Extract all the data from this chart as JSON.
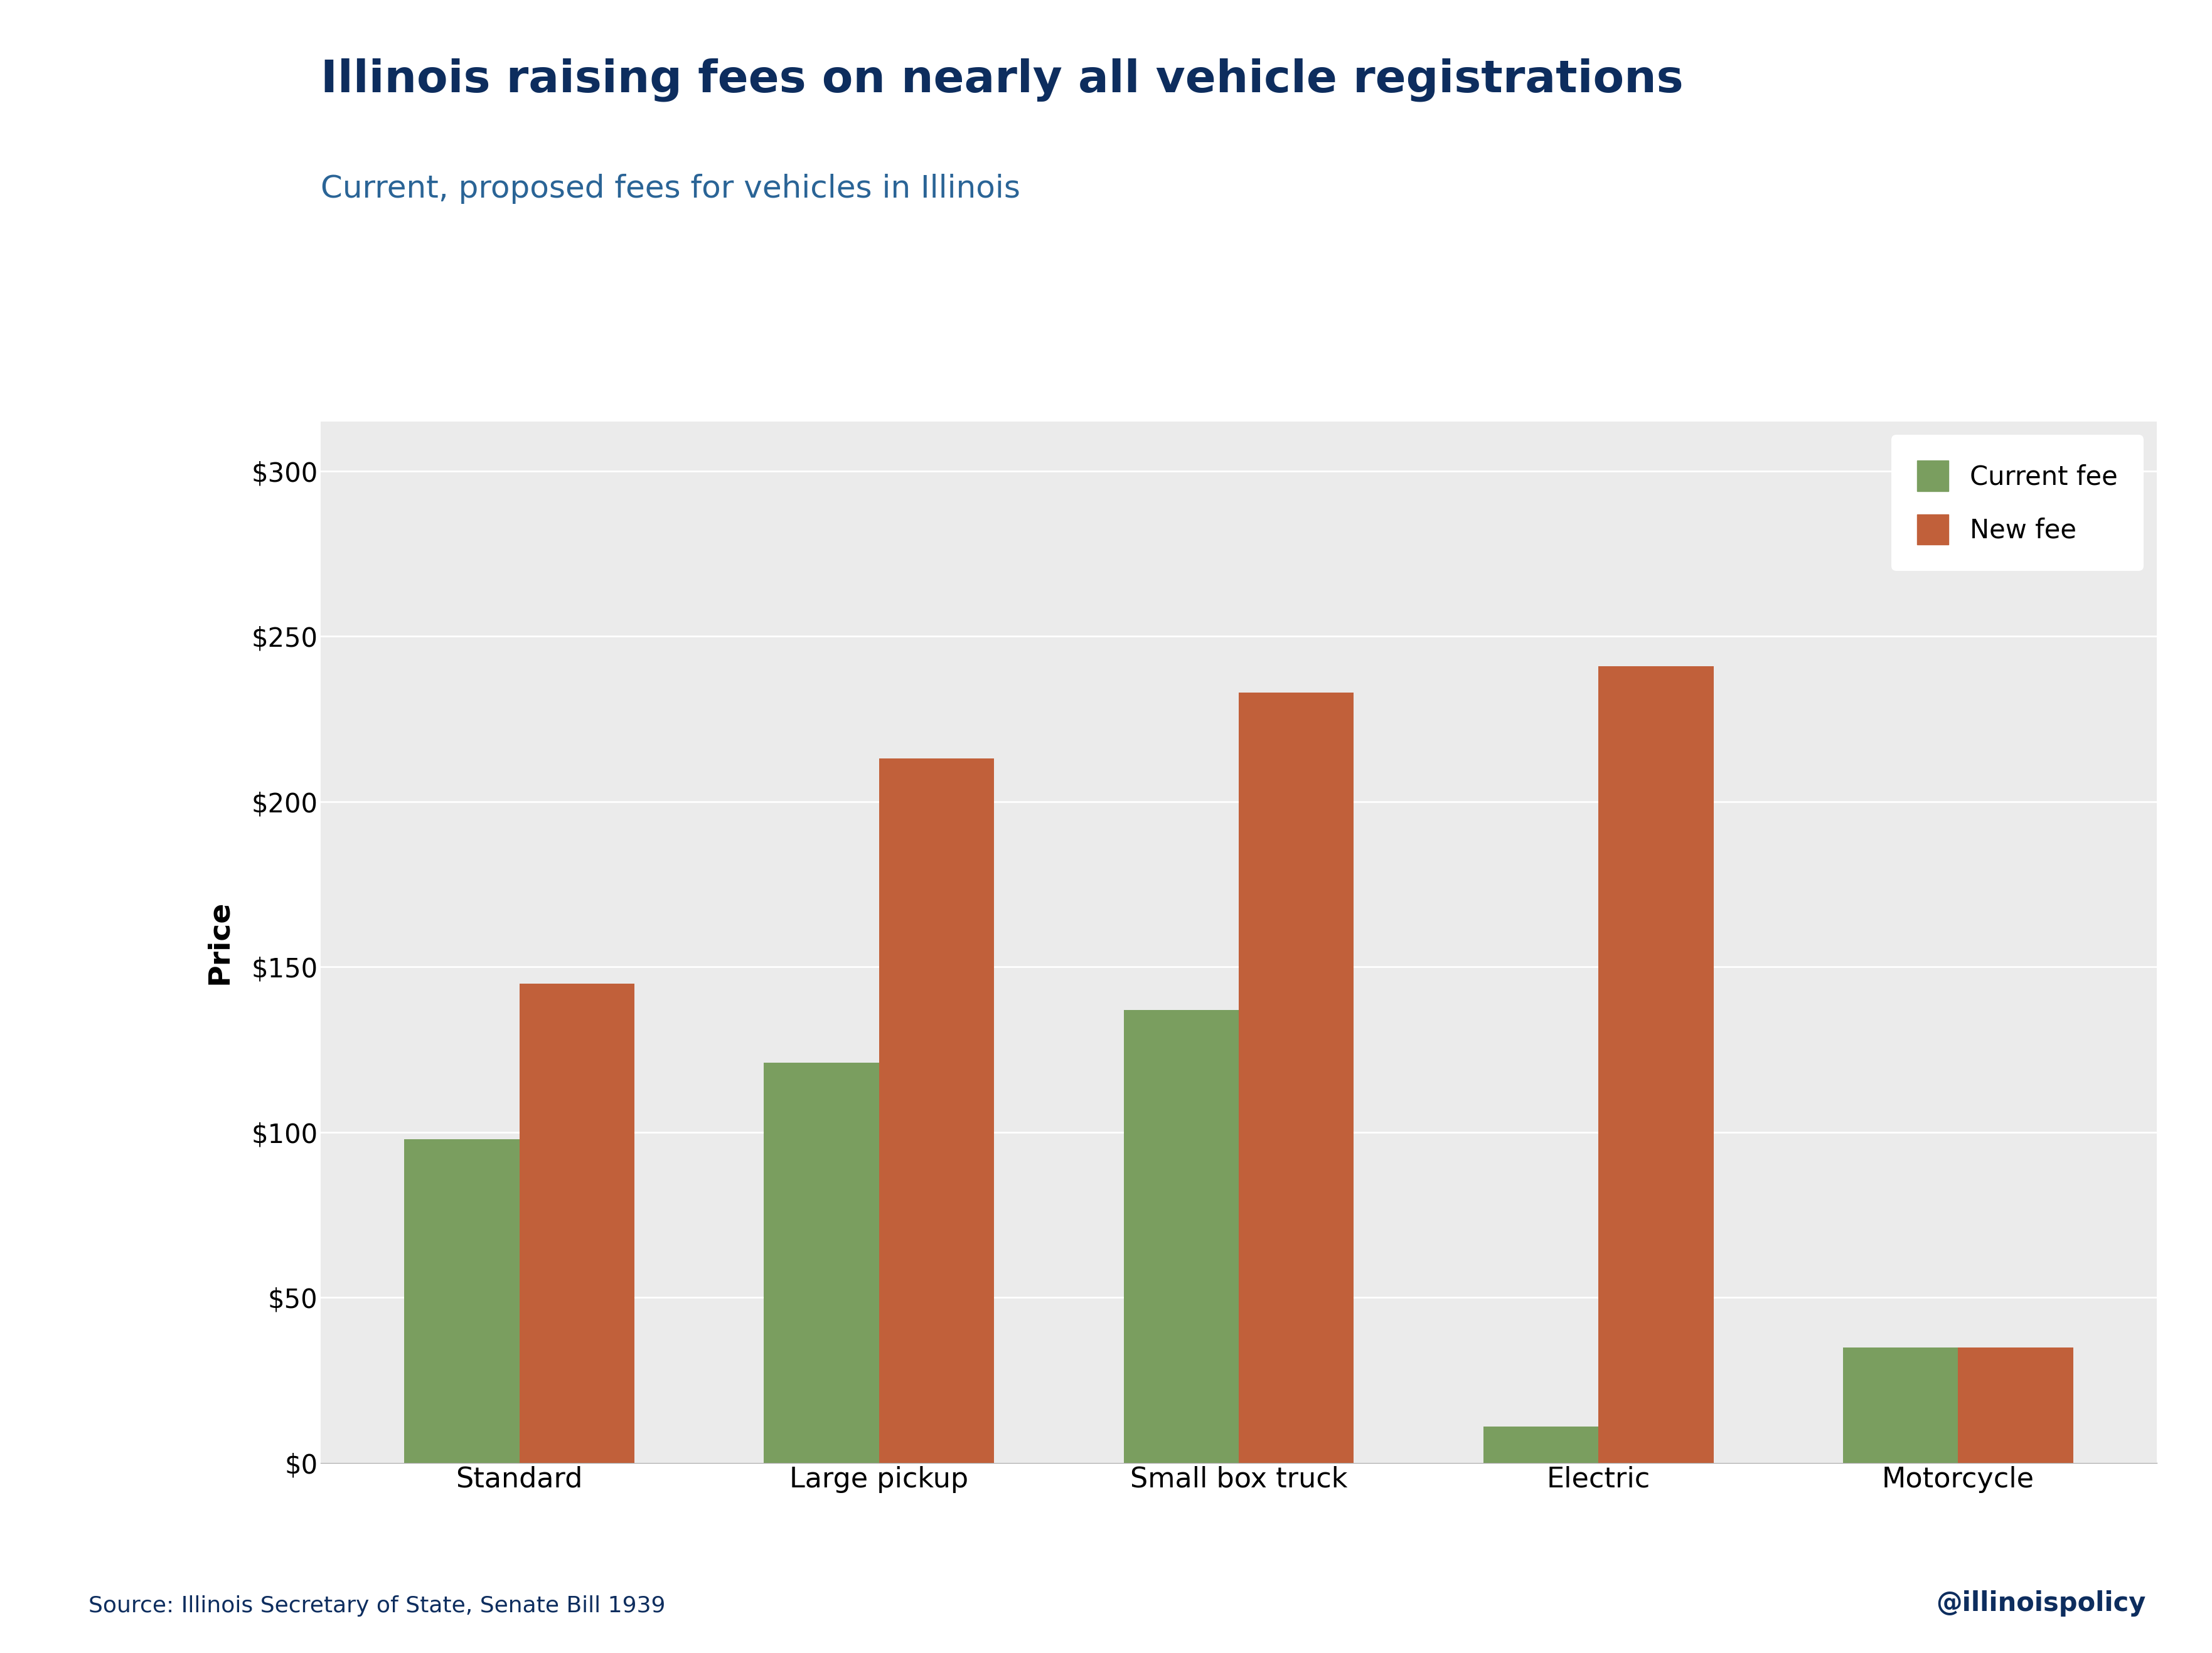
{
  "title": "Illinois raising fees on nearly all vehicle registrations",
  "subtitle": "Current, proposed fees for vehicles in Illinois",
  "categories": [
    "Standard",
    "Large pickup",
    "Small box truck",
    "Electric",
    "Motorcycle"
  ],
  "current_fee": [
    98,
    121,
    137,
    11,
    35
  ],
  "new_fee": [
    145,
    213,
    233,
    241,
    35
  ],
  "current_color": "#7a9e5f",
  "new_color": "#c1603a",
  "title_color": "#0d2d5e",
  "subtitle_color": "#2a6496",
  "axis_text_color": "#000000",
  "legend_text_color": "#000000",
  "ylabel_color": "#000000",
  "bg_color": "#ffffff",
  "plot_bg_color": "#ebebeb",
  "ylabel": "Price",
  "ylim": [
    0,
    315
  ],
  "yticks": [
    0,
    50,
    100,
    150,
    200,
    250,
    300
  ],
  "source_text": "Source: Illinois Secretary of State, Senate Bill 1939",
  "watermark": "@illinoispolicy",
  "title_fontsize": 52,
  "subtitle_fontsize": 36,
  "tick_fontsize": 30,
  "xlabel_fontsize": 32,
  "ylabel_fontsize": 34,
  "legend_fontsize": 30,
  "source_fontsize": 26,
  "watermark_fontsize": 30,
  "bar_width": 0.32
}
